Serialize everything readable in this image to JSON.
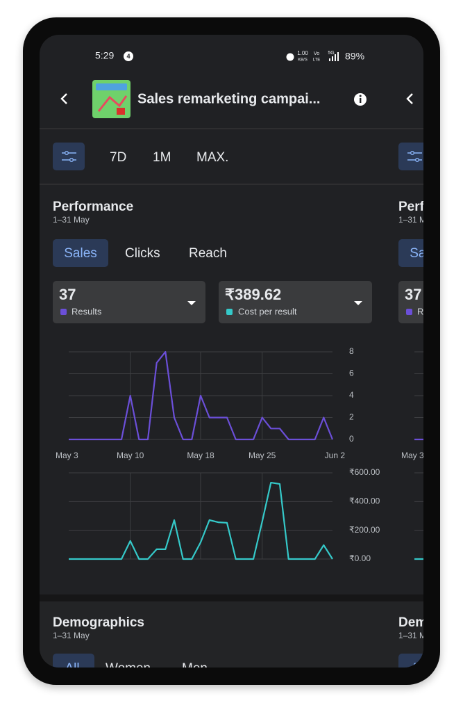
{
  "status_bar": {
    "time": "5:29",
    "notification_count": "4",
    "speed": "1.00",
    "speed_unit": "KB/S",
    "volte_top": "Vo",
    "volte_bottom": "LTE",
    "network": "5G",
    "battery": "89%"
  },
  "header": {
    "title": "Sales remarketing campai..."
  },
  "filters": [
    "7D",
    "1M",
    "MAX."
  ],
  "performance": {
    "title": "Performance",
    "date_range": "1–31 May",
    "tabs": [
      "Sales",
      "Clicks",
      "Reach"
    ],
    "metrics": [
      {
        "value": "37",
        "label": "Results",
        "color": "#6b4fd8"
      },
      {
        "value": "₹389.62",
        "label": "Cost per result",
        "color": "#35c9c9"
      }
    ]
  },
  "chart_data": [
    {
      "type": "line",
      "categories": [
        "May 3",
        null,
        null,
        null,
        null,
        null,
        null,
        "May 10",
        null,
        null,
        null,
        null,
        null,
        null,
        null,
        "May 18",
        null,
        null,
        null,
        null,
        null,
        null,
        "May 25",
        null,
        null,
        null,
        null,
        null,
        null,
        null,
        "Jun 2"
      ],
      "series": [
        {
          "color": "#6b4fd8",
          "values": [
            0,
            0,
            0,
            0,
            0,
            0,
            0,
            4,
            0,
            0,
            7,
            8,
            2,
            0,
            0,
            4,
            2,
            2,
            2,
            0,
            0,
            0,
            2,
            1,
            1,
            0,
            0,
            0,
            0,
            2,
            0
          ]
        }
      ],
      "ylim": [
        0,
        8
      ],
      "yticks": [
        0,
        2,
        4,
        6,
        8
      ],
      "grid": true
    },
    {
      "type": "line",
      "series": [
        {
          "color": "#35c9c9",
          "values": [
            0,
            0,
            0,
            0,
            0,
            0,
            0,
            126,
            0,
            0,
            68,
            68,
            271,
            0,
            0,
            116,
            271,
            256,
            252,
            0,
            0,
            0,
            260,
            532,
            522,
            0,
            0,
            0,
            0,
            97,
            0
          ]
        }
      ],
      "ylim": [
        0,
        600
      ],
      "yticks": [
        {
          "value": 0,
          "label": "₹0.00"
        },
        {
          "value": 200,
          "label": "₹200.00"
        },
        {
          "value": 400,
          "label": "₹400.00"
        },
        {
          "value": 600,
          "label": "₹600.00"
        }
      ],
      "grid": true
    }
  ],
  "demographics": {
    "title": "Demographics",
    "date_range": "1–31 May",
    "tabs": [
      "All",
      "Women",
      "Men"
    ]
  }
}
